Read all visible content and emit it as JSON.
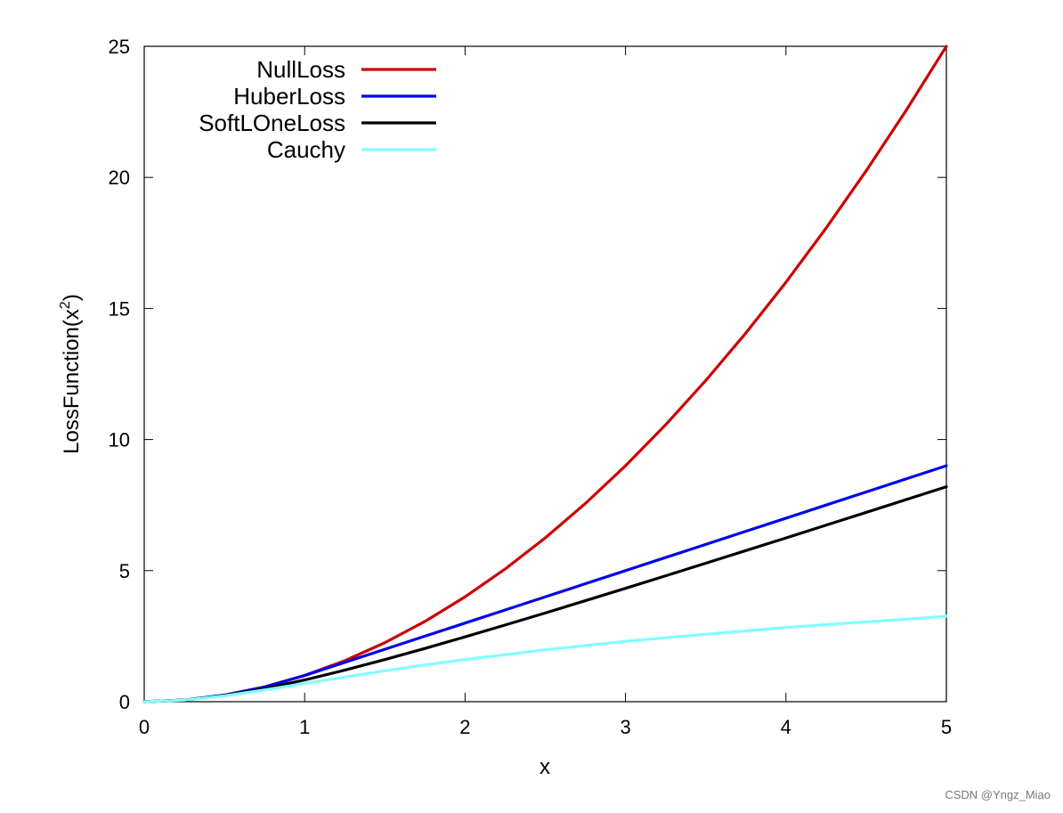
{
  "chart_data": {
    "type": "line",
    "title": "",
    "xlabel": "x",
    "ylabel_base": "LossFunction(x",
    "ylabel_sup": "2",
    "ylabel_close": ")",
    "xlim": [
      0,
      5
    ],
    "ylim": [
      0,
      25
    ],
    "xticks": [
      0,
      1,
      2,
      3,
      4,
      5
    ],
    "yticks": [
      0,
      5,
      10,
      15,
      20,
      25
    ],
    "xtick_labels": [
      "0",
      "1",
      "2",
      "3",
      "4",
      "5"
    ],
    "ytick_labels": [
      "0",
      "5",
      "10",
      "15",
      "20",
      "25"
    ],
    "grid": false,
    "legend_position": "top-left",
    "x": [
      0,
      0.25,
      0.5,
      0.75,
      1,
      1.25,
      1.5,
      1.75,
      2,
      2.25,
      2.5,
      2.75,
      3,
      3.25,
      3.5,
      3.75,
      4,
      4.25,
      4.5,
      4.75,
      5
    ],
    "series": [
      {
        "name": "NullLoss",
        "color": "#cc0000",
        "values": [
          0,
          0.0625,
          0.25,
          0.5625,
          1,
          1.5625,
          2.25,
          3.0625,
          4,
          5.0625,
          6.25,
          7.5625,
          9,
          10.5625,
          12.25,
          14.0625,
          16,
          18.0625,
          20.25,
          22.5625,
          25
        ]
      },
      {
        "name": "HuberLoss",
        "color": "#0000ee",
        "values": [
          0,
          0.0625,
          0.25,
          0.5625,
          1,
          1.5,
          2,
          2.5,
          3,
          3.5,
          4,
          4.5,
          5,
          5.5,
          6,
          6.5,
          7,
          7.5,
          8,
          8.5,
          9
        ]
      },
      {
        "name": "SoftLOneLoss",
        "color": "#000000",
        "values": [
          0,
          0.062,
          0.236,
          0.5,
          0.828,
          1.202,
          1.606,
          2.031,
          2.472,
          2.925,
          3.385,
          3.853,
          4.325,
          4.802,
          5.282,
          5.764,
          6.246,
          6.734,
          7.22,
          7.711,
          8.198
        ]
      },
      {
        "name": "Cauchy",
        "color": "#80ffff",
        "values": [
          0,
          0.061,
          0.223,
          0.446,
          0.693,
          0.94,
          1.179,
          1.404,
          1.609,
          1.794,
          1.981,
          2.141,
          2.303,
          2.442,
          2.573,
          2.7,
          2.833,
          2.938,
          3.046,
          3.148,
          3.258
        ]
      }
    ]
  },
  "watermark": "CSDN @Yngz_Miao"
}
